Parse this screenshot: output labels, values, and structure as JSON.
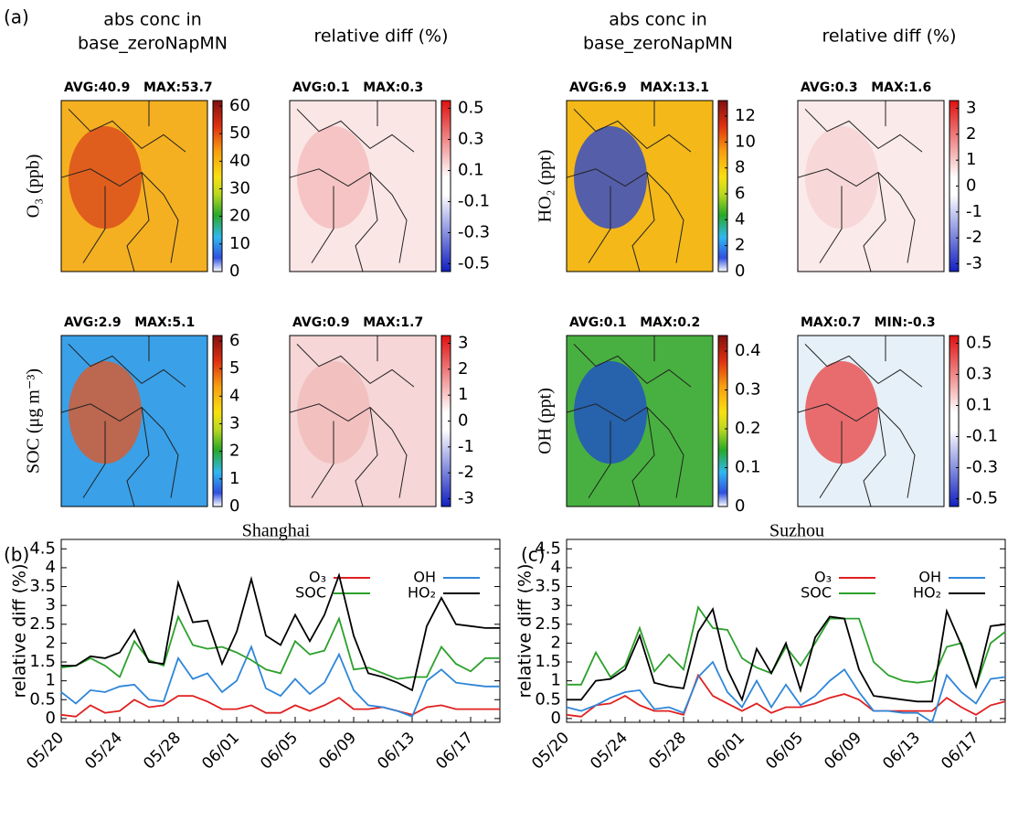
{
  "figure": {
    "panel_labels": [
      "(a)",
      "(b)",
      "(c)"
    ],
    "column_headers": [
      [
        "abs conc in",
        "base_zeroNapMN"
      ],
      [
        "relative diff (%)"
      ]
    ],
    "cities": [
      "Shanghai",
      "Suzhou"
    ],
    "rows": [
      {
        "label": "O₃ (ppb)",
        "maps": [
          {
            "stats": "AVG:40.9   MAX:53.7",
            "cmap": "abs",
            "cbar_lim": [
              0,
              62
            ],
            "cbar_ticks": [
              0,
              10,
              20,
              30,
              40,
              50,
              60
            ]
          },
          {
            "stats": "AVG:0.1   MAX:0.3",
            "cmap": "diff",
            "cbar_lim": [
              -0.55,
              0.55
            ],
            "cbar_ticks": [
              -0.5,
              -0.3,
              -0.1,
              0.1,
              0.3,
              0.5
            ]
          }
        ]
      },
      {
        "label": "SOC (μg m⁻³)",
        "maps": [
          {
            "stats": "AVG:2.9   MAX:5.1",
            "cmap": "abs",
            "cbar_lim": [
              0,
              6.2
            ],
            "cbar_ticks": [
              0,
              1,
              2,
              3,
              4,
              5,
              6
            ]
          },
          {
            "stats": "AVG:0.9   MAX:1.7",
            "cmap": "diff",
            "cbar_lim": [
              -3.3,
              3.3
            ],
            "cbar_ticks": [
              -3,
              -2,
              -1,
              0,
              1,
              2,
              3
            ]
          }
        ]
      },
      {
        "label": "HO₂ (ppt)",
        "maps": [
          {
            "stats": "AVG:6.9   MAX:13.1",
            "cmap": "abs",
            "cbar_lim": [
              0,
              13.2
            ],
            "cbar_ticks": [
              0,
              2,
              4,
              6,
              8,
              10,
              12
            ]
          },
          {
            "stats": "AVG:0.3   MAX:1.6",
            "cmap": "diff",
            "cbar_lim": [
              -3.3,
              3.3
            ],
            "cbar_ticks": [
              -3,
              -2,
              -1,
              0,
              1,
              2,
              3
            ]
          }
        ]
      },
      {
        "label": "OH (ppt)",
        "maps": [
          {
            "stats": "AVG:0.1   MAX:0.2",
            "cmap": "abs",
            "cbar_lim": [
              0,
              0.44
            ],
            "cbar_ticks": [
              0,
              0.1,
              0.2,
              0.3,
              0.4
            ]
          },
          {
            "stats": "MAX:0.7   MIN:-0.3",
            "cmap": "diff",
            "cbar_lim": [
              -0.55,
              0.55
            ],
            "cbar_ticks": [
              -0.5,
              -0.3,
              -0.1,
              0.1,
              0.3,
              0.5
            ]
          }
        ]
      }
    ]
  },
  "chart_data": [
    {
      "type": "line",
      "ylabel": "relative diff (%)",
      "categories": [
        "05/20",
        null,
        null,
        null,
        "05/24",
        null,
        null,
        null,
        "05/28",
        null,
        null,
        null,
        "06/01",
        null,
        null,
        null,
        "06/05",
        null,
        null,
        null,
        "06/09",
        null,
        null,
        null,
        "06/13",
        null,
        null,
        null,
        "06/17",
        null,
        null
      ],
      "ylim": [
        -0.1,
        4.75
      ],
      "yticks": [
        0,
        0.5,
        1,
        1.5,
        2,
        2.5,
        3,
        3.5,
        4,
        4.5
      ],
      "series": [
        {
          "name": "O₃",
          "color": "#e02020",
          "values": [
            0.1,
            0.05,
            0.35,
            0.15,
            0.2,
            0.5,
            0.3,
            0.35,
            0.6,
            0.6,
            0.45,
            0.25,
            0.25,
            0.35,
            0.15,
            0.15,
            0.35,
            0.2,
            0.35,
            0.55,
            0.25,
            0.25,
            0.3,
            0.2,
            0.1,
            0.3,
            0.35,
            0.25,
            0.25,
            0.25,
            0.25
          ]
        },
        {
          "name": "OH",
          "color": "#2f86d8",
          "values": [
            0.7,
            0.4,
            0.75,
            0.7,
            0.85,
            0.9,
            0.5,
            0.45,
            1.6,
            1.05,
            1.2,
            0.7,
            1.0,
            1.9,
            0.8,
            0.6,
            1.05,
            0.65,
            0.95,
            1.7,
            0.75,
            0.35,
            0.3,
            0.2,
            0.05,
            1.0,
            1.3,
            0.95,
            0.9,
            0.85,
            0.85
          ]
        },
        {
          "name": "SOC",
          "color": "#2ca02c",
          "values": [
            1.35,
            1.4,
            1.6,
            1.4,
            1.1,
            2.05,
            1.55,
            1.4,
            2.7,
            1.95,
            1.85,
            1.9,
            1.75,
            1.55,
            1.3,
            1.2,
            2.05,
            1.7,
            1.8,
            2.65,
            1.3,
            1.35,
            1.2,
            1.05,
            1.1,
            1.1,
            1.9,
            1.45,
            1.25,
            1.6,
            1.6
          ]
        },
        {
          "name": "HO₂",
          "color": "#000000",
          "values": [
            1.4,
            1.4,
            1.65,
            1.6,
            1.75,
            2.35,
            1.5,
            1.45,
            3.6,
            2.55,
            2.6,
            1.45,
            2.3,
            3.7,
            2.2,
            1.95,
            2.75,
            2.05,
            2.75,
            3.8,
            2.2,
            1.2,
            1.1,
            0.95,
            0.75,
            2.45,
            3.2,
            2.5,
            2.45,
            2.4,
            2.4
          ]
        }
      ]
    },
    {
      "type": "line",
      "ylabel": "relative diff (%)",
      "categories": [
        "05/20",
        null,
        null,
        null,
        "05/24",
        null,
        null,
        null,
        "05/28",
        null,
        null,
        null,
        "06/01",
        null,
        null,
        null,
        "06/05",
        null,
        null,
        null,
        "06/09",
        null,
        null,
        null,
        "06/13",
        null,
        null,
        null,
        "06/17",
        null,
        null
      ],
      "ylim": [
        -0.1,
        4.75
      ],
      "yticks": [
        0,
        0.5,
        1,
        1.5,
        2,
        2.5,
        3,
        3.5,
        4,
        4.5
      ],
      "series": [
        {
          "name": "O₃",
          "color": "#e02020",
          "values": [
            0.1,
            0.05,
            0.35,
            0.4,
            0.6,
            0.35,
            0.2,
            0.2,
            0.1,
            1.15,
            0.6,
            0.4,
            0.2,
            0.4,
            0.15,
            0.3,
            0.3,
            0.4,
            0.55,
            0.65,
            0.5,
            0.2,
            0.2,
            0.2,
            0.2,
            0.2,
            0.55,
            0.3,
            0.1,
            0.35,
            0.45
          ]
        },
        {
          "name": "OH",
          "color": "#2f86d8",
          "values": [
            0.3,
            0.2,
            0.35,
            0.55,
            0.7,
            0.75,
            0.25,
            0.3,
            0.15,
            1.1,
            1.5,
            0.7,
            0.3,
            1.0,
            0.3,
            0.9,
            0.35,
            0.6,
            1.0,
            1.3,
            0.7,
            0.2,
            0.2,
            0.15,
            0.15,
            -0.1,
            1.15,
            0.7,
            0.4,
            1.05,
            1.1
          ]
        },
        {
          "name": "SOC",
          "color": "#2ca02c",
          "values": [
            0.9,
            0.9,
            1.75,
            1.1,
            1.4,
            2.4,
            1.25,
            1.7,
            1.3,
            2.95,
            2.4,
            2.35,
            1.6,
            1.35,
            1.2,
            1.9,
            1.4,
            2.0,
            2.65,
            2.65,
            2.65,
            1.5,
            1.15,
            1.0,
            0.95,
            1.0,
            1.9,
            2.0,
            0.85,
            2.0,
            2.3
          ]
        },
        {
          "name": "HO₂",
          "color": "#000000",
          "values": [
            0.5,
            0.5,
            1.0,
            1.05,
            1.3,
            2.2,
            0.95,
            0.85,
            0.8,
            2.3,
            2.9,
            1.3,
            0.5,
            1.85,
            1.2,
            2.0,
            0.75,
            2.15,
            2.7,
            2.65,
            1.3,
            0.6,
            0.55,
            0.5,
            0.45,
            0.45,
            2.85,
            1.95,
            0.85,
            2.45,
            2.5
          ]
        }
      ]
    }
  ]
}
